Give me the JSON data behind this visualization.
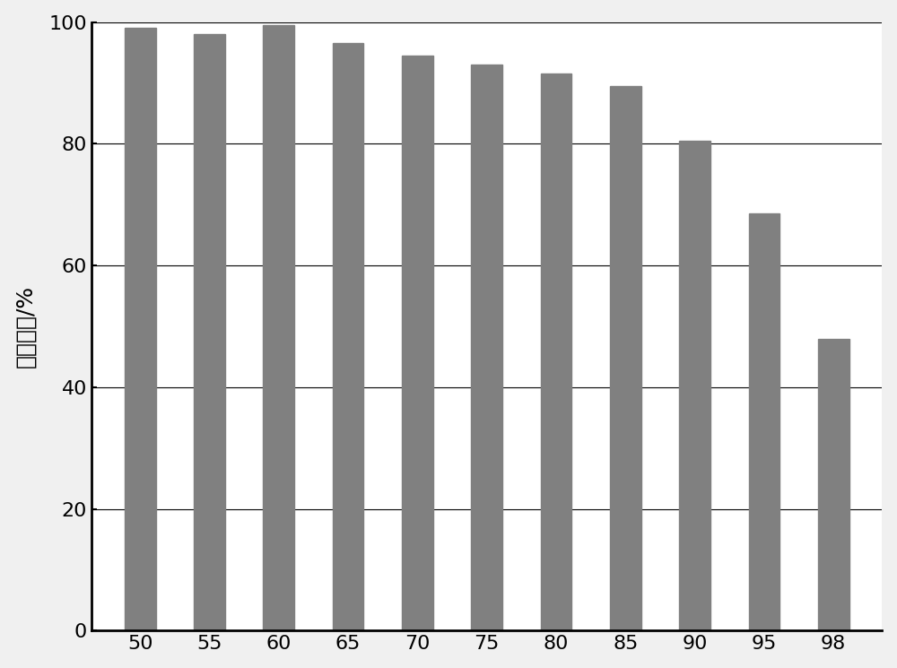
{
  "categories": [
    50,
    55,
    60,
    65,
    70,
    75,
    80,
    85,
    90,
    95,
    98
  ],
  "values": [
    99.0,
    98.0,
    99.5,
    96.5,
    94.5,
    93.0,
    91.5,
    89.5,
    80.5,
    68.5,
    48.0
  ],
  "bar_color": "#808080",
  "ylabel": "剩余活性/%",
  "ylim": [
    0,
    100
  ],
  "yticks": [
    0,
    20,
    40,
    60,
    80,
    100
  ],
  "background_color": "#f0f0f0",
  "plot_bg_color": "#ffffff",
  "bar_width": 0.45,
  "ylabel_fontsize": 18,
  "tick_fontsize": 16,
  "grid_color": "#000000",
  "grid_linewidth": 0.8,
  "spine_linewidth": 2.0
}
